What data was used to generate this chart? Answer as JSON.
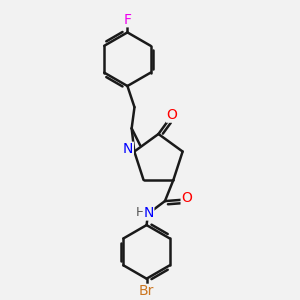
{
  "background_color": "#f2f2f2",
  "bond_color": "#1a1a1a",
  "atom_colors": {
    "F": "#ee00ee",
    "N": "#0000ff",
    "O": "#ff0000",
    "Br": "#cc7722",
    "H": "#555555"
  },
  "bond_width": 1.8,
  "figsize": [
    3.0,
    3.0
  ],
  "dpi": 100
}
